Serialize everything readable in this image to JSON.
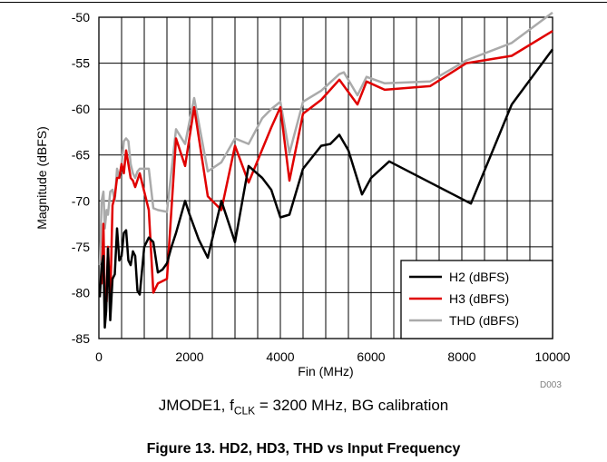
{
  "chart_data": {
    "type": "line",
    "xlabel": "Fin (MHz)",
    "ylabel": "Magnitude (dBFS)",
    "xlim": [
      0,
      10000
    ],
    "ylim": [
      -85,
      -50
    ],
    "x_ticks": [
      "0",
      "2000",
      "4000",
      "6000",
      "8000",
      "10000"
    ],
    "y_ticks": [
      "-50",
      "-55",
      "-60",
      "-65",
      "-70",
      "-75",
      "-80",
      "-85"
    ],
    "x_tick_values": [
      0,
      2000,
      4000,
      6000,
      8000,
      10000
    ],
    "y_tick_values": [
      -50,
      -55,
      -60,
      -65,
      -70,
      -75,
      -80,
      -85
    ],
    "x_grid_step": 500,
    "y_grid_step": 5,
    "grid": true,
    "legend_position": "bottom-right",
    "series": [
      {
        "name": "H2 (dBFS)",
        "color": "#000000",
        "points": [
          [
            20,
            -80.5
          ],
          [
            60,
            -77
          ],
          [
            100,
            -76
          ],
          [
            130,
            -83.8
          ],
          [
            160,
            -82
          ],
          [
            200,
            -75.2
          ],
          [
            250,
            -83
          ],
          [
            300,
            -78.5
          ],
          [
            350,
            -78
          ],
          [
            400,
            -73
          ],
          [
            450,
            -76.5
          ],
          [
            500,
            -76
          ],
          [
            550,
            -73.5
          ],
          [
            600,
            -73.2
          ],
          [
            650,
            -76.5
          ],
          [
            700,
            -77
          ],
          [
            750,
            -75.5
          ],
          [
            800,
            -76
          ],
          [
            850,
            -79.8
          ],
          [
            900,
            -80.2
          ],
          [
            1000,
            -75
          ],
          [
            1100,
            -74
          ],
          [
            1200,
            -74.5
          ],
          [
            1300,
            -77.8
          ],
          [
            1400,
            -77.5
          ],
          [
            1500,
            -76.8
          ],
          [
            1600,
            -75
          ],
          [
            1700,
            -73.5
          ],
          [
            1900,
            -70
          ],
          [
            2000,
            -71.5
          ],
          [
            2200,
            -74.2
          ],
          [
            2400,
            -76.2
          ],
          [
            2700,
            -70
          ],
          [
            3000,
            -74.5
          ],
          [
            3300,
            -66.2
          ],
          [
            3600,
            -67.5
          ],
          [
            3800,
            -68.8
          ],
          [
            4000,
            -71.8
          ],
          [
            4200,
            -71.5
          ],
          [
            4500,
            -66.5
          ],
          [
            4900,
            -64
          ],
          [
            5100,
            -63.8
          ],
          [
            5300,
            -62.8
          ],
          [
            5500,
            -64.5
          ],
          [
            5800,
            -69.3
          ],
          [
            6000,
            -67.5
          ],
          [
            6400,
            -65.7
          ],
          [
            8200,
            -70.3
          ],
          [
            9100,
            -59.5
          ],
          [
            10000,
            -53.5
          ]
        ]
      },
      {
        "name": "H3 (dBFS)",
        "color": "#e00000",
        "points": [
          [
            20,
            -79
          ],
          [
            60,
            -79
          ],
          [
            100,
            -72.5
          ],
          [
            130,
            -81
          ],
          [
            170,
            -81
          ],
          [
            200,
            -75
          ],
          [
            250,
            -81
          ],
          [
            300,
            -70.5
          ],
          [
            350,
            -69.5
          ],
          [
            400,
            -67.5
          ],
          [
            450,
            -67.5
          ],
          [
            500,
            -66
          ],
          [
            550,
            -67
          ],
          [
            600,
            -64.5
          ],
          [
            650,
            -66
          ],
          [
            700,
            -67.5
          ],
          [
            750,
            -67.8
          ],
          [
            800,
            -68.5
          ],
          [
            900,
            -67
          ],
          [
            1000,
            -69
          ],
          [
            1100,
            -71
          ],
          [
            1200,
            -80
          ],
          [
            1300,
            -79
          ],
          [
            1500,
            -78.5
          ],
          [
            1700,
            -63.2
          ],
          [
            1900,
            -66.2
          ],
          [
            2100,
            -59.8
          ],
          [
            2400,
            -69.5
          ],
          [
            2700,
            -71
          ],
          [
            3000,
            -64
          ],
          [
            3300,
            -68
          ],
          [
            3800,
            -62
          ],
          [
            4000,
            -59.8
          ],
          [
            4200,
            -67.8
          ],
          [
            4500,
            -60.5
          ],
          [
            4900,
            -59
          ],
          [
            5300,
            -56.8
          ],
          [
            5700,
            -59.5
          ],
          [
            5900,
            -57
          ],
          [
            6300,
            -57.9
          ],
          [
            7300,
            -57.5
          ],
          [
            8100,
            -55
          ],
          [
            9100,
            -54.2
          ],
          [
            10000,
            -51.5
          ]
        ]
      },
      {
        "name": "THD (dBFS)",
        "color": "#aaaaaa",
        "points": [
          [
            20,
            -77
          ],
          [
            60,
            -70
          ],
          [
            100,
            -69
          ],
          [
            130,
            -73
          ],
          [
            170,
            -71
          ],
          [
            200,
            -71.5
          ],
          [
            250,
            -69
          ],
          [
            300,
            -68.8
          ],
          [
            350,
            -70
          ],
          [
            400,
            -66.5
          ],
          [
            450,
            -67.5
          ],
          [
            500,
            -66
          ],
          [
            550,
            -63.5
          ],
          [
            600,
            -63.2
          ],
          [
            650,
            -63.5
          ],
          [
            700,
            -66
          ],
          [
            750,
            -67
          ],
          [
            800,
            -67.5
          ],
          [
            850,
            -66.8
          ],
          [
            900,
            -66.5
          ],
          [
            1000,
            -66.5
          ],
          [
            1100,
            -66.5
          ],
          [
            1200,
            -70.8
          ],
          [
            1300,
            -71
          ],
          [
            1500,
            -71.2
          ],
          [
            1700,
            -62.2
          ],
          [
            1900,
            -63.8
          ],
          [
            2100,
            -58.8
          ],
          [
            2400,
            -66.8
          ],
          [
            2700,
            -65.8
          ],
          [
            3000,
            -63.2
          ],
          [
            3300,
            -63.8
          ],
          [
            3600,
            -61
          ],
          [
            3800,
            -60
          ],
          [
            4000,
            -59.2
          ],
          [
            4200,
            -64.8
          ],
          [
            4500,
            -59.2
          ],
          [
            4900,
            -58
          ],
          [
            5300,
            -56.2
          ],
          [
            5400,
            -56
          ],
          [
            5700,
            -58.5
          ],
          [
            5900,
            -56.5
          ],
          [
            6300,
            -57.2
          ],
          [
            7300,
            -57
          ],
          [
            8100,
            -54.7
          ],
          [
            9100,
            -52.8
          ],
          [
            10000,
            -49.5
          ]
        ]
      }
    ]
  },
  "caption": {
    "prefix": "JMODE1, f",
    "subscript": "CLK",
    "suffix": " = 3200 MHz, BG calibration"
  },
  "figure_title": "Figure 13. HD2, HD3, THD vs Input Frequency",
  "chart_id": "D003"
}
